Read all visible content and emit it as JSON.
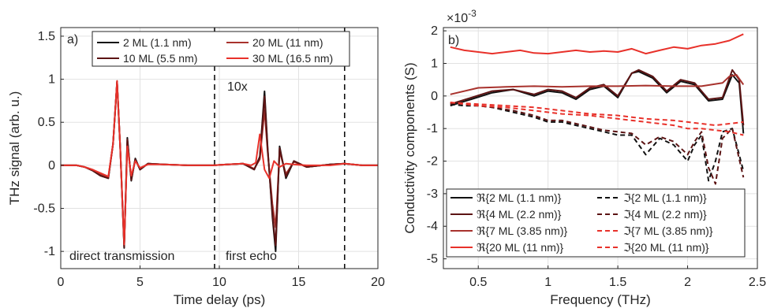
{
  "chart_data": [
    {
      "panel": "a)",
      "type": "line",
      "xlabel": "Time delay (ps)",
      "ylabel": "THz signal (arb. u.)",
      "xlim": [
        0,
        20
      ],
      "ylim": [
        -1.2,
        1.6
      ],
      "xticks": [
        0,
        5,
        10,
        15,
        20
      ],
      "yticks": [
        -1,
        -0.5,
        0,
        0.5,
        1,
        1.5
      ],
      "grid": true,
      "legend_position": "top",
      "annotations": [
        "10x",
        "direct transmission",
        "first echo"
      ],
      "vlines": [
        9.7,
        17.9
      ],
      "series": [
        {
          "name": "2 ML (1.1 nm)",
          "color": "#111111",
          "dash": "solid",
          "x": [
            0,
            1,
            1.5,
            2,
            2.5,
            3,
            3.3,
            3.55,
            3.75,
            4.0,
            4.2,
            4.45,
            4.7,
            5.0,
            5.5,
            6.5,
            8,
            9.6,
            10.5,
            11.5,
            12.2,
            12.55,
            12.85,
            13.05,
            13.35,
            13.55,
            13.8,
            14.2,
            14.7,
            15.5,
            17,
            17.9,
            19,
            20
          ],
          "y": [
            0,
            0,
            -0.02,
            -0.06,
            -0.12,
            -0.15,
            0.25,
            0.97,
            0.2,
            -0.96,
            0.32,
            -0.18,
            0.08,
            -0.05,
            0.02,
            0.01,
            0,
            0,
            0.01,
            0.02,
            -0.05,
            0.1,
            0.86,
            0.2,
            -0.6,
            -1.0,
            0.22,
            -0.15,
            0.05,
            -0.02,
            0.01,
            0.02,
            0,
            0
          ]
        },
        {
          "name": "20 ML (11 nm)",
          "color": "#a8322d",
          "dash": "solid",
          "x": [
            0,
            1,
            1.5,
            2,
            2.5,
            3,
            3.3,
            3.55,
            3.75,
            4.0,
            4.2,
            4.45,
            4.7,
            5.0,
            5.5,
            6.5,
            8,
            9.6,
            10.5,
            11.5,
            12.2,
            12.55,
            12.85,
            13.05,
            13.35,
            13.55,
            13.8,
            14.2,
            14.7,
            15.5,
            17,
            17.9,
            19,
            20
          ],
          "y": [
            0,
            0,
            -0.02,
            -0.05,
            -0.1,
            -0.14,
            0.25,
            0.98,
            0.2,
            -0.93,
            0.26,
            -0.14,
            0.06,
            -0.04,
            0.02,
            0.01,
            0,
            0,
            0.01,
            0.02,
            -0.04,
            0.07,
            0.64,
            0.15,
            -0.45,
            -0.72,
            0.16,
            -0.1,
            0.04,
            -0.02,
            0.01,
            0.02,
            0,
            0
          ]
        },
        {
          "name": "10 ML (5.5 nm)",
          "color": "#5c1414",
          "dash": "solid",
          "x": [
            0,
            1,
            1.5,
            2,
            2.5,
            3,
            3.3,
            3.55,
            3.75,
            4.0,
            4.2,
            4.45,
            4.7,
            5.0,
            5.5,
            6.5,
            8,
            9.6,
            10.5,
            11.5,
            12.2,
            12.55,
            12.85,
            13.05,
            13.35,
            13.55,
            13.8,
            14.2,
            14.7,
            15.5,
            17,
            17.9,
            19,
            20
          ],
          "y": [
            0,
            0,
            -0.02,
            -0.06,
            -0.12,
            -0.15,
            0.25,
            0.97,
            0.2,
            -0.95,
            0.3,
            -0.17,
            0.07,
            -0.05,
            0.02,
            0.01,
            0,
            0,
            0.01,
            0.02,
            -0.05,
            0.09,
            0.8,
            0.18,
            -0.56,
            -0.93,
            0.2,
            -0.13,
            0.05,
            -0.02,
            0.01,
            0.02,
            0,
            0
          ]
        },
        {
          "name": "30 ML (16.5 nm)",
          "color": "#e8312a",
          "dash": "solid",
          "x": [
            0,
            1,
            1.5,
            2,
            2.5,
            3,
            3.3,
            3.55,
            3.75,
            4.0,
            4.2,
            4.45,
            4.7,
            5.0,
            5.5,
            6.5,
            8,
            9.6,
            10.5,
            11.5,
            12.0,
            12.3,
            12.55,
            12.85,
            13.15,
            13.45,
            13.8,
            14.2,
            14.7,
            15.5,
            17,
            17.9,
            19,
            20
          ],
          "y": [
            0,
            0,
            -0.02,
            -0.05,
            -0.09,
            -0.13,
            0.25,
            0.98,
            0.2,
            -0.92,
            0.22,
            -0.12,
            0.05,
            -0.03,
            0.01,
            0.01,
            0,
            0,
            0.01,
            0.02,
            0.0,
            0.03,
            0.36,
            -0.05,
            -0.15,
            0.05,
            -0.02,
            0.02,
            0.01,
            0,
            0,
            0.02,
            0,
            0
          ]
        }
      ]
    },
    {
      "panel": "b)",
      "type": "line",
      "xlabel": "Frequency (THz)",
      "ylabel": "Conductivity components (S)",
      "y_multiplier": "×10",
      "y_multiplier_exp": "-3",
      "xlim": [
        0.25,
        2.5
      ],
      "ylim": [
        -5.3,
        2.1
      ],
      "xticks": [
        0.5,
        1,
        1.5,
        2,
        2.5
      ],
      "yticks": [
        -5,
        -4,
        -3,
        -2,
        -1,
        0,
        1,
        2
      ],
      "grid": true,
      "legend_position": "bottom",
      "series": [
        {
          "name": "ℜ{2 ML (1.1 nm)}",
          "color": "#111111",
          "dash": "solid",
          "x": [
            0.3,
            0.45,
            0.6,
            0.75,
            0.9,
            1.0,
            1.1,
            1.2,
            1.3,
            1.4,
            1.5,
            1.6,
            1.65,
            1.75,
            1.85,
            1.95,
            2.05,
            2.15,
            2.25,
            2.32,
            2.37,
            2.4
          ],
          "y": [
            -0.3,
            -0.1,
            0.1,
            0.2,
            0.0,
            0.15,
            0.1,
            -0.1,
            0.2,
            0.3,
            -0.05,
            0.7,
            0.75,
            0.55,
            0.1,
            0.45,
            0.35,
            -0.15,
            -0.1,
            0.65,
            0.4,
            -1.15
          ]
        },
        {
          "name": "ℑ{2 ML (1.1 nm)}",
          "color": "#111111",
          "dash": "dash",
          "x": [
            0.3,
            0.4,
            0.5,
            0.6,
            0.75,
            0.9,
            1.0,
            1.1,
            1.2,
            1.3,
            1.4,
            1.5,
            1.6,
            1.7,
            1.8,
            1.9,
            2.0,
            2.05,
            2.1,
            2.15,
            2.2,
            2.25,
            2.32,
            2.4
          ],
          "y": [
            -0.25,
            -0.3,
            -0.3,
            -0.35,
            -0.5,
            -0.65,
            -0.8,
            -0.8,
            -0.9,
            -1.0,
            -1.1,
            -1.2,
            -1.2,
            -1.8,
            -1.3,
            -1.5,
            -2.0,
            -1.5,
            -1.2,
            -2.6,
            -2.0,
            -1.1,
            -1.0,
            -2.3
          ]
        },
        {
          "name": "ℜ{4 ML (2.2 nm)}",
          "color": "#5c1414",
          "dash": "solid",
          "x": [
            0.3,
            0.45,
            0.6,
            0.75,
            0.9,
            1.0,
            1.1,
            1.2,
            1.3,
            1.4,
            1.5,
            1.6,
            1.65,
            1.75,
            1.85,
            1.95,
            2.05,
            2.15,
            2.25,
            2.32,
            2.37,
            2.4
          ],
          "y": [
            -0.25,
            -0.05,
            0.15,
            0.2,
            0.05,
            0.2,
            0.15,
            -0.05,
            0.25,
            0.35,
            0.0,
            0.7,
            0.8,
            0.6,
            0.15,
            0.5,
            0.4,
            -0.1,
            -0.05,
            0.8,
            0.5,
            -0.9
          ]
        },
        {
          "name": "ℑ{4 ML (2.2 nm)}",
          "color": "#5c1414",
          "dash": "dash",
          "x": [
            0.3,
            0.4,
            0.5,
            0.6,
            0.75,
            0.9,
            1.0,
            1.1,
            1.2,
            1.3,
            1.4,
            1.5,
            1.6,
            1.7,
            1.8,
            1.9,
            2.0,
            2.05,
            2.1,
            2.15,
            2.2,
            2.25,
            2.32,
            2.4
          ],
          "y": [
            -0.2,
            -0.25,
            -0.3,
            -0.35,
            -0.45,
            -0.6,
            -0.75,
            -0.75,
            -0.85,
            -0.95,
            -1.05,
            -1.1,
            -1.15,
            -1.5,
            -1.25,
            -1.4,
            -1.8,
            -1.4,
            -1.1,
            -2.2,
            -2.7,
            -1.3,
            -1.0,
            -2.5
          ]
        },
        {
          "name": "ℜ{7 ML (3.85 nm)}",
          "color": "#a8322d",
          "dash": "solid",
          "x": [
            0.3,
            0.5,
            0.7,
            0.9,
            1.1,
            1.3,
            1.5,
            1.7,
            1.9,
            2.1,
            2.25,
            2.3,
            2.35,
            2.4
          ],
          "y": [
            0.05,
            0.25,
            0.28,
            0.3,
            0.28,
            0.3,
            0.3,
            0.32,
            0.3,
            0.3,
            0.4,
            0.6,
            0.65,
            0.35
          ]
        },
        {
          "name": "ℑ{7 ML (3.85 nm)}",
          "color": "#e8312a",
          "dash": "dash",
          "x": [
            0.3,
            0.5,
            0.7,
            0.9,
            1.1,
            1.3,
            1.5,
            1.7,
            1.9,
            2.0,
            2.1,
            2.2,
            2.3,
            2.4
          ],
          "y": [
            -0.2,
            -0.3,
            -0.35,
            -0.45,
            -0.55,
            -0.6,
            -0.7,
            -0.8,
            -0.9,
            -1.0,
            -1.0,
            -1.05,
            -1.1,
            -1.2
          ]
        },
        {
          "name": "ℜ{20 ML (11 nm)}",
          "color": "#e8312a",
          "dash": "solid",
          "x": [
            0.3,
            0.4,
            0.5,
            0.6,
            0.7,
            0.8,
            0.9,
            1.0,
            1.1,
            1.2,
            1.3,
            1.4,
            1.5,
            1.6,
            1.7,
            1.8,
            1.9,
            2.0,
            2.1,
            2.2,
            2.3,
            2.4
          ],
          "y": [
            1.5,
            1.4,
            1.35,
            1.3,
            1.35,
            1.4,
            1.32,
            1.3,
            1.35,
            1.4,
            1.35,
            1.38,
            1.35,
            1.45,
            1.3,
            1.4,
            1.5,
            1.45,
            1.55,
            1.6,
            1.7,
            1.9
          ]
        },
        {
          "name": "ℑ{20 ML (11 nm)}",
          "color": "#e8312a",
          "dash": "dash",
          "x": [
            0.3,
            0.5,
            0.7,
            0.9,
            1.1,
            1.3,
            1.5,
            1.7,
            1.9,
            2.0,
            2.1,
            2.2,
            2.3,
            2.4
          ],
          "y": [
            -0.2,
            -0.25,
            -0.3,
            -0.35,
            -0.45,
            -0.55,
            -0.6,
            -0.7,
            -0.75,
            -0.8,
            -0.85,
            -0.9,
            -0.85,
            -0.8
          ]
        }
      ]
    }
  ]
}
